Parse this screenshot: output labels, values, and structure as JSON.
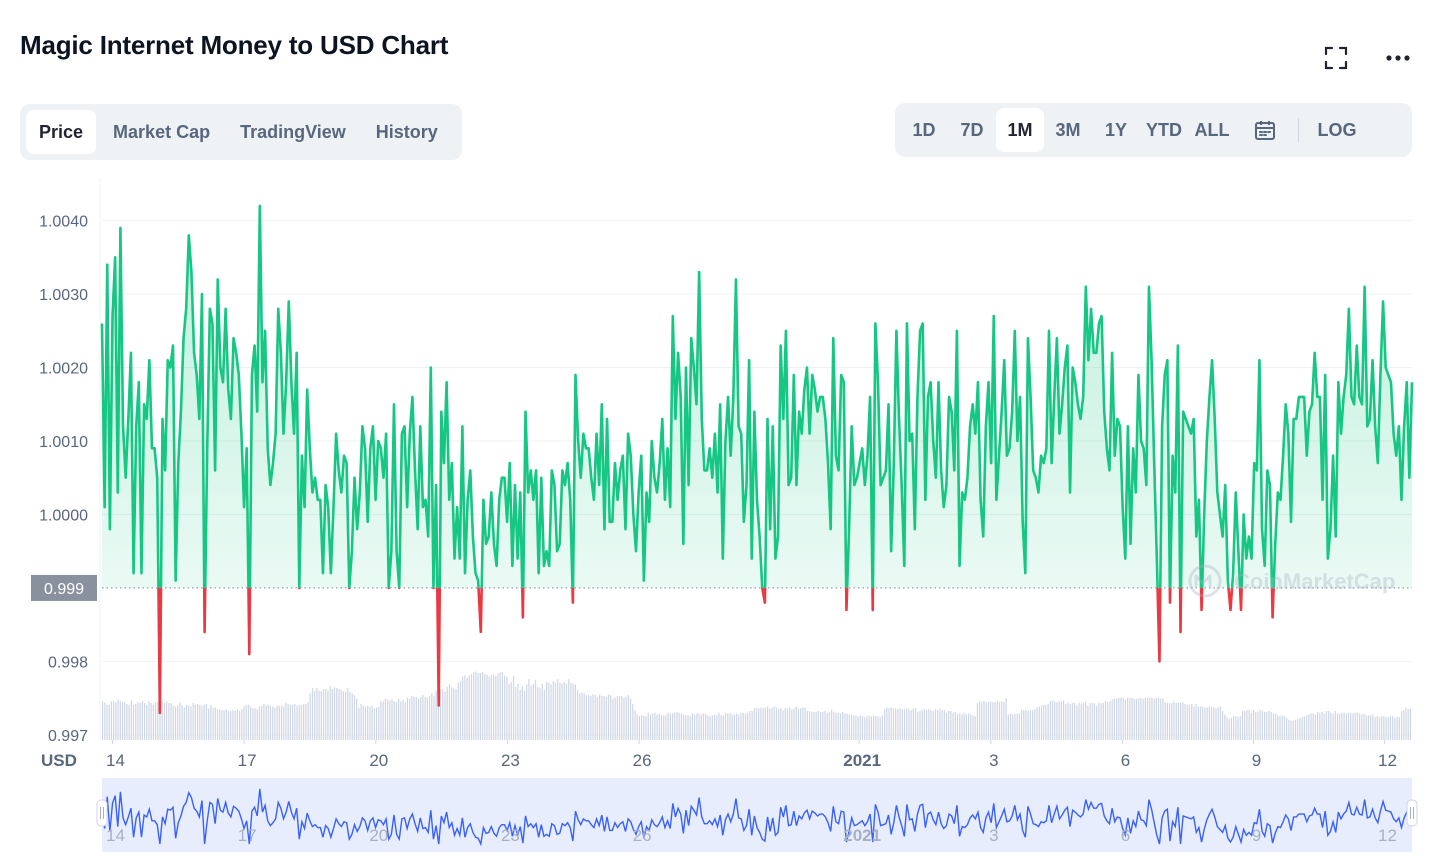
{
  "header": {
    "title": "Magic Internet Money to USD Chart",
    "fullscreen_icon": "fullscreen-icon",
    "more_icon": "more-horizontal-icon"
  },
  "tabs": [
    {
      "label": "Price",
      "active": true
    },
    {
      "label": "Market Cap",
      "active": false
    },
    {
      "label": "TradingView",
      "active": false
    },
    {
      "label": "History",
      "active": false
    }
  ],
  "ranges": {
    "items": [
      "1D",
      "7D",
      "1M",
      "3M",
      "1Y",
      "YTD",
      "ALL"
    ],
    "active": "1M",
    "calendar_icon": "calendar-icon",
    "log_label": "LOG"
  },
  "watermark": "CoinMarketCap",
  "colors": {
    "up": "#16c784",
    "down": "#ea3943",
    "volume": "#cfd6e4",
    "navigator_line": "#3861fb",
    "navigator_fill": "#e8edfe",
    "baseline_label_bg": "#8a919e"
  },
  "chart_data": {
    "type": "line",
    "currency_label": "USD",
    "baseline_value": 0.999,
    "baseline_label": "0.999",
    "y_ticks": [
      {
        "value": 1.004,
        "label": "1.0040"
      },
      {
        "value": 1.003,
        "label": "1.0030"
      },
      {
        "value": 1.002,
        "label": "1.0020"
      },
      {
        "value": 1.001,
        "label": "1.0010"
      },
      {
        "value": 1.0,
        "label": "1.0000"
      },
      {
        "value": 0.998,
        "label": "0.998"
      },
      {
        "value": 0.997,
        "label": "0.997"
      }
    ],
    "ylim": [
      0.99693,
      1.00458
    ],
    "x_ticks": [
      {
        "pos": 0.008,
        "label": "14",
        "bold": false
      },
      {
        "pos": 0.1085,
        "label": "17",
        "bold": false
      },
      {
        "pos": 0.209,
        "label": "20",
        "bold": false
      },
      {
        "pos": 0.3095,
        "label": "23",
        "bold": false
      },
      {
        "pos": 0.41,
        "label": "26",
        "bold": false
      },
      {
        "pos": 0.578,
        "label": "2021",
        "bold": true
      },
      {
        "pos": 0.6785,
        "label": "3",
        "bold": false
      },
      {
        "pos": 0.779,
        "label": "6",
        "bold": false
      },
      {
        "pos": 0.879,
        "label": "9",
        "bold": false
      },
      {
        "pos": 0.979,
        "label": "12",
        "bold": false
      }
    ],
    "series": [
      {
        "values": [
          1.0026,
          1.0001,
          1.0034,
          0.9998,
          1.0027,
          1.0035,
          1.0003,
          1.0039,
          1.0012,
          1.0005,
          1.0013,
          1.0022,
          0.9992,
          1.0012,
          1.0018,
          0.9992,
          1.0015,
          1.0013,
          1.0021,
          1.0009,
          1.0009,
          1.0005,
          0.9973,
          1.0013,
          1.0006,
          1.0021,
          1.002,
          1.0023,
          0.9991,
          1.0007,
          1.0014,
          1.0024,
          1.0028,
          1.0038,
          1.0033,
          1.0022,
          1.0019,
          1.0013,
          1.003,
          0.9984,
          1.0009,
          1.0028,
          1.0026,
          1.0006,
          1.0032,
          1.002,
          1.0018,
          1.0028,
          1.0017,
          1.0013,
          1.0024,
          1.0022,
          1.0019,
          1.0011,
          1.0001,
          1.0009,
          0.9981,
          1.0019,
          1.0023,
          1.0014,
          1.0042,
          1.0018,
          1.0025,
          1.0009,
          1.0004,
          1.0007,
          1.0011,
          1.0028,
          1.0022,
          1.0011,
          1.0018,
          1.0029,
          1.0018,
          1.0011,
          1.0022,
          0.999,
          1.0008,
          1.0001,
          1.0017,
          1.0009,
          1.0003,
          1.0005,
          1.0002,
          1.0002,
          0.9992,
          1.0004,
          1.0001,
          0.9992,
          1.0001,
          1.0011,
          1.0006,
          1.0003,
          1.0008,
          1.0007,
          0.999,
          0.9995,
          1.0005,
          0.9998,
          1.0003,
          1.0012,
          1.0009,
          0.9999,
          1.0009,
          1.0012,
          1.0002,
          1.001,
          1.0009,
          1.0005,
          1.0011,
          0.999,
          0.9995,
          1.0015,
          0.9995,
          0.999,
          1.0011,
          1.0012,
          1.0001,
          1.0011,
          1.0016,
          1.0006,
          0.9998,
          1.0012,
          1.0001,
          1.0002,
          0.9997,
          1.002,
          0.999,
          1.0004,
          0.9974,
          1.0014,
          1.0007,
          1.0018,
          1.0002,
          1.0007,
          0.9994,
          1.0001,
          0.9994,
          1.0012,
          0.9992,
          1.0002,
          1.0006,
          0.9997,
          0.9992,
          0.9991,
          0.9984,
          1.0002,
          0.9996,
          0.9997,
          1.0003,
          0.9996,
          0.9993,
          1.0002,
          1.0005,
          1.0005,
          0.9999,
          1.0007,
          0.9993,
          1.0004,
          0.9994,
          1.0003,
          0.9986,
          1.0014,
          1.0003,
          1.0006,
          1.0002,
          1.0006,
          0.9992,
          1.0005,
          0.9993,
          0.9995,
          0.9993,
          1.0006,
          1.0004,
          0.9995,
          0.9996,
          1.0006,
          1.0004,
          1.0007,
          1.0002,
          0.9988,
          1.0019,
          1.001,
          1.0005,
          1.0011,
          1.0009,
          1.0009,
          1.0005,
          1.0002,
          1.0011,
          1.0004,
          1.0015,
          0.9998,
          1.0013,
          0.9999,
          0.9999,
          1.0007,
          1.0002,
          1.0006,
          1.0008,
          0.9998,
          1.0011,
          1.0008,
          1.0,
          0.9995,
          1.0003,
          1.0008,
          0.9991,
          1.0003,
          0.9999,
          1.001,
          1.0005,
          1.0003,
          1.0007,
          1.0013,
          1.0002,
          1.0009,
          1.0001,
          1.0027,
          1.0013,
          1.0022,
          1.0016,
          0.9996,
          1.002,
          1.0004,
          1.0024,
          1.002,
          1.0015,
          1.0033,
          1.0013,
          1.0006,
          1.0006,
          1.0009,
          1.0005,
          1.0011,
          1.0003,
          1.0015,
          0.9994,
          1.001,
          1.0016,
          1.0008,
          1.0016,
          1.0032,
          1.0012,
          1.0011,
          0.9999,
          1.0004,
          1.0021,
          0.9994,
          1.0014,
          1.0002,
          0.9997,
          0.999,
          0.9988,
          1.0013,
          0.9998,
          1.0012,
          0.9994,
          0.9997,
          1.0023,
          1.0013,
          1.0025,
          1.0004,
          1.0005,
          1.0019,
          1.0004,
          1.0014,
          1.0011,
          1.0017,
          1.002,
          1.0011,
          1.0019,
          1.0017,
          1.0014,
          1.0016,
          1.0016,
          1.0013,
          1.0007,
          0.9998,
          1.0024,
          1.0008,
          1.0006,
          1.0019,
          1.0018,
          0.9987,
          0.9998,
          1.0012,
          1.0004,
          1.0005,
          1.0007,
          1.0009,
          1.0004,
          1.0008,
          1.0016,
          0.9987,
          1.0026,
          1.0018,
          1.0004,
          1.0005,
          1.0006,
          1.0015,
          0.9995,
          1.0007,
          1.0025,
          1.0013,
          1.0004,
          0.9993,
          1.0026,
          1.001,
          1.0011,
          0.9998,
          1.0016,
          1.0025,
          1.0026,
          1.0002,
          1.0016,
          1.0018,
          1.001,
          1.0005,
          1.0018,
          1.0006,
          1.0001,
          1.0004,
          1.0016,
          1.0014,
          1.0006,
          1.0025,
          0.9993,
          1.0003,
          1.0002,
          1.0005,
          1.0012,
          1.0015,
          1.0011,
          1.0018,
          1.0002,
          0.9997,
          1.0012,
          1.0018,
          1.0007,
          1.0027,
          1.0002,
          1.0008,
          1.0014,
          1.0021,
          1.0008,
          1.0009,
          1.0014,
          1.0025,
          1.001,
          1.0016,
          0.9999,
          0.9992,
          1.0024,
          1.0016,
          1.0006,
          1.0005,
          1.0003,
          1.0008,
          1.0007,
          1.0009,
          1.0025,
          1.0007,
          1.0016,
          1.0024,
          1.0011,
          1.0015,
          1.002,
          1.0023,
          1.0003,
          1.002,
          1.0018,
          1.0015,
          1.0013,
          1.0016,
          1.0031,
          1.0021,
          1.0028,
          1.0022,
          1.0022,
          1.0026,
          1.0027,
          1.0014,
          1.0009,
          1.0006,
          1.0022,
          1.0008,
          1.0013,
          1.0012,
          1.0001,
          0.9994,
          1.0012,
          0.9996,
          1.0009,
          1.0003,
          1.0019,
          1.001,
          1.0009,
          1.0004,
          1.0031,
          1.0021,
          1.0007,
          0.9994,
          0.998,
          1.0012,
          1.0019,
          1.0021,
          0.9988,
          1.0008,
          1.0003,
          1.0023,
          0.9984,
          1.0014,
          1.0013,
          1.0012,
          1.0011,
          1.0013,
          0.9997,
          1.0002,
          0.9987,
          1.0,
          1.001,
          1.0016,
          1.0021,
          1.0013,
          1.0003,
          1.0,
          0.9997,
          1.0004,
          0.9991,
          0.9987,
          0.9992,
          1.0003,
          0.9995,
          0.9987,
          1.0,
          0.9994,
          0.9997,
          0.9994,
          1.0007,
          1.0006,
          1.0021,
          0.9998,
          0.9993,
          1.0006,
          1.0004,
          0.9986,
          0.9996,
          1.0003,
          1.0002,
          1.0008,
          1.0015,
          1.0011,
          0.9999,
          1.0013,
          1.0013,
          1.0016,
          1.0016,
          1.0016,
          1.0008,
          1.0014,
          1.0015,
          1.0022,
          1.0016,
          1.0016,
          1.0002,
          1.0019,
          0.9994,
          0.9998,
          1.0008,
          0.9997,
          1.0018,
          1.0011,
          1.0016,
          1.0019,
          1.0028,
          1.0016,
          1.0015,
          1.0023,
          1.0016,
          1.0015,
          1.0031,
          1.0012,
          1.0013,
          1.0021,
          1.0012,
          1.0007,
          1.0019,
          1.0029,
          1.002,
          1.0019,
          1.0018,
          1.0011,
          1.0008,
          1.0012,
          1.0002,
          1.0012,
          1.0018,
          1.0005,
          1.0018
        ]
      }
    ],
    "volume": [
      0.44,
      0.43,
      0.4,
      0.4,
      0.44,
      0.44,
      0.43,
      0.46,
      0.44,
      0.43,
      0.43,
      0.41,
      0.4,
      0.45,
      0.4,
      0.41,
      0.43,
      0.42,
      0.44,
      0.42,
      0.4,
      0.44,
      0.42,
      0.4,
      0.43,
      0.44,
      0.41,
      0.44,
      0.42,
      0.44,
      0.42,
      0.42,
      0.39,
      0.38,
      0.39,
      0.43,
      0.4,
      0.37,
      0.4,
      0.39,
      0.38,
      0.42,
      0.4,
      0.41,
      0.4,
      0.39,
      0.4,
      0.41,
      0.36,
      0.4,
      0.37,
      0.37,
      0.35,
      0.35,
      0.34,
      0.34,
      0.35,
      0.33,
      0.33,
      0.34,
      0.33,
      0.35,
      0.33,
      0.35,
      0.38,
      0.4,
      0.4,
      0.38,
      0.36,
      0.36,
      0.35,
      0.38,
      0.39,
      0.41,
      0.39,
      0.4,
      0.39,
      0.38,
      0.37,
      0.39,
      0.39,
      0.39,
      0.38,
      0.42,
      0.41,
      0.4,
      0.4,
      0.41,
      0.39,
      0.4,
      0.4,
      0.41,
      0.41,
      0.43,
      0.53,
      0.59,
      0.56,
      0.59,
      0.56,
      0.56,
      0.58,
      0.58,
      0.56,
      0.61,
      0.58,
      0.6,
      0.59,
      0.58,
      0.57,
      0.55,
      0.55,
      0.59,
      0.55,
      0.53,
      0.51,
      0.47,
      0.37,
      0.41,
      0.39,
      0.38,
      0.39,
      0.38,
      0.39,
      0.36,
      0.37,
      0.38,
      0.44,
      0.44,
      0.47,
      0.46,
      0.45,
      0.46,
      0.44,
      0.43,
      0.47,
      0.44,
      0.46,
      0.43,
      0.48,
      0.47,
      0.5,
      0.49,
      0.49,
      0.47,
      0.49,
      0.51,
      0.49,
      0.48,
      0.5,
      0.53,
      0.5,
      0.56,
      0.53,
      0.58,
      0.58,
      0.55,
      0.6,
      0.63,
      0.6,
      0.59,
      0.58,
      0.65,
      0.67,
      0.72,
      0.74,
      0.71,
      0.73,
      0.75,
      0.77,
      0.78,
      0.76,
      0.76,
      0.77,
      0.75,
      0.74,
      0.72,
      0.74,
      0.74,
      0.73,
      0.76,
      0.77,
      0.77,
      0.73,
      0.72,
      0.64,
      0.66,
      0.73,
      0.6,
      0.64,
      0.57,
      0.61,
      0.56,
      0.63,
      0.69,
      0.62,
      0.64,
      0.68,
      0.6,
      0.59,
      0.64,
      0.57,
      0.66,
      0.65,
      0.63,
      0.67,
      0.65,
      0.69,
      0.65,
      0.64,
      0.66,
      0.64,
      0.69,
      0.65,
      0.64,
      0.63,
      0.57,
      0.53,
      0.54,
      0.53,
      0.51,
      0.51,
      0.5,
      0.52,
      0.51,
      0.49,
      0.52,
      0.5,
      0.5,
      0.49,
      0.52,
      0.51,
      0.47,
      0.48,
      0.5,
      0.5,
      0.5,
      0.48,
      0.49,
      0.51,
      0.47,
      0.41,
      0.34,
      0.29,
      0.27,
      0.28,
      0.28,
      0.27,
      0.31,
      0.29,
      0.3,
      0.31,
      0.29,
      0.3,
      0.28,
      0.28,
      0.28,
      0.31,
      0.3,
      0.3,
      0.31,
      0.32,
      0.31,
      0.3,
      0.29,
      0.28,
      0.28,
      0.27,
      0.3,
      0.29,
      0.3,
      0.3,
      0.29,
      0.3,
      0.3,
      0.28,
      0.27,
      0.28,
      0.29,
      0.28,
      0.31,
      0.28,
      0.28,
      0.31,
      0.3,
      0.31,
      0.29,
      0.29,
      0.3,
      0.29,
      0.31,
      0.31,
      0.3,
      0.31,
      0.33,
      0.33,
      0.36,
      0.36,
      0.36,
      0.37,
      0.36,
      0.37,
      0.38,
      0.36,
      0.36,
      0.38,
      0.37,
      0.35,
      0.36,
      0.34,
      0.36,
      0.36,
      0.37,
      0.35,
      0.36,
      0.38,
      0.36,
      0.36,
      0.37,
      0.37,
      0.33,
      0.33,
      0.32,
      0.32,
      0.32,
      0.33,
      0.32,
      0.32,
      0.33,
      0.31,
      0.32,
      0.34,
      0.32,
      0.31,
      0.31,
      0.3,
      0.32,
      0.3,
      0.3,
      0.29,
      0.29,
      0.28,
      0.28,
      0.27,
      0.28,
      0.27,
      0.26,
      0.27,
      0.28,
      0.27,
      0.28,
      0.27,
      0.27,
      0.26,
      0.28,
      0.35,
      0.37,
      0.36,
      0.37,
      0.36,
      0.36,
      0.35,
      0.36,
      0.35,
      0.35,
      0.36,
      0.35,
      0.34,
      0.36,
      0.36,
      0.32,
      0.33,
      0.34,
      0.35,
      0.34,
      0.35,
      0.34,
      0.33,
      0.35,
      0.34,
      0.35,
      0.34,
      0.34,
      0.31,
      0.33,
      0.33,
      0.31,
      0.32,
      0.3,
      0.3,
      0.29,
      0.31,
      0.29,
      0.3,
      0.29,
      0.28,
      0.27,
      0.42,
      0.44,
      0.43,
      0.44,
      0.43,
      0.43,
      0.44,
      0.43,
      0.43,
      0.44,
      0.43,
      0.44,
      0.43,
      0.47,
      0.29,
      0.3,
      0.29,
      0.3,
      0.3,
      0.3,
      0.34,
      0.34,
      0.34,
      0.33,
      0.34,
      0.34,
      0.35,
      0.37,
      0.38,
      0.39,
      0.4,
      0.4,
      0.41,
      0.44,
      0.45,
      0.44,
      0.43,
      0.44,
      0.44,
      0.45,
      0.41,
      0.43,
      0.41,
      0.42,
      0.42,
      0.39,
      0.42,
      0.41,
      0.42,
      0.44,
      0.39,
      0.42,
      0.42,
      0.42,
      0.39,
      0.42,
      0.42,
      0.42,
      0.44,
      0.43,
      0.44,
      0.46,
      0.47,
      0.47,
      0.48,
      0.48,
      0.48,
      0.46,
      0.48,
      0.48,
      0.48,
      0.47,
      0.47,
      0.47,
      0.48,
      0.47,
      0.48,
      0.48,
      0.48,
      0.48,
      0.47,
      0.48,
      0.48,
      0.47,
      0.47,
      0.43,
      0.42,
      0.42,
      0.42,
      0.44,
      0.42,
      0.42,
      0.42,
      0.43,
      0.41,
      0.4,
      0.4,
      0.41,
      0.38,
      0.41,
      0.38,
      0.38,
      0.38,
      0.37,
      0.37,
      0.38,
      0.38,
      0.37,
      0.36,
      0.37,
      0.38,
      0.33,
      0.29,
      0.26,
      0.24,
      0.25,
      0.27,
      0.27,
      0.26,
      0.27,
      0.33,
      0.33,
      0.34,
      0.34,
      0.31,
      0.34,
      0.32,
      0.32,
      0.34,
      0.33,
      0.32,
      0.32,
      0.33,
      0.32,
      0.3,
      0.3,
      0.28,
      0.27,
      0.28,
      0.27,
      0.25,
      0.23,
      0.22,
      0.22,
      0.23,
      0.24,
      0.25,
      0.26,
      0.27,
      0.28,
      0.29,
      0.3,
      0.3,
      0.29,
      0.32,
      0.31,
      0.32,
      0.3,
      0.33,
      0.33,
      0.31,
      0.3,
      0.33,
      0.3,
      0.3,
      0.31,
      0.31,
      0.3,
      0.31,
      0.31,
      0.3,
      0.31,
      0.31,
      0.3,
      0.29,
      0.3,
      0.28,
      0.28,
      0.28,
      0.29,
      0.26,
      0.27,
      0.26,
      0.27,
      0.27,
      0.26,
      0.26,
      0.27,
      0.27,
      0.25,
      0.26,
      0.26,
      0.33,
      0.34,
      0.37,
      0.35,
      0.36
    ]
  }
}
